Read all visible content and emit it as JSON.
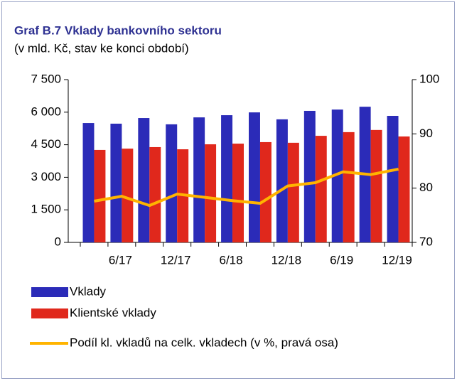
{
  "chart_data": {
    "type": "bar",
    "title": "Graf B.7 Vklady bankovního sektoru",
    "subtitle": "(v mld. Kč, stav ke konci období)",
    "categories": [
      null,
      "6/17",
      null,
      "12/17",
      null,
      "6/18",
      null,
      "12/18",
      null,
      "6/19",
      null,
      "12/19"
    ],
    "series": [
      {
        "name": "Vklady",
        "type": "bar",
        "color": "#2b2bb8",
        "values": [
          5500,
          5470,
          5730,
          5440,
          5760,
          5860,
          5990,
          5670,
          6060,
          6120,
          6250,
          5830
        ]
      },
      {
        "name": "Klientské vklady",
        "type": "bar",
        "color": "#e0281c",
        "values": [
          4260,
          4320,
          4390,
          4290,
          4520,
          4550,
          4620,
          4590,
          4910,
          5080,
          5180,
          4880
        ]
      },
      {
        "name": "Podíl kl. vkladů na celk. vkladech (v %, pravá osa)",
        "type": "line",
        "axis": "y2",
        "color": "#ffb400",
        "values": [
          77.6,
          78.5,
          76.8,
          78.9,
          78.3,
          77.7,
          77.2,
          80.4,
          81.0,
          83.0,
          82.5,
          83.5
        ]
      }
    ],
    "ylim": [
      0,
      7500
    ],
    "yticks": [
      0,
      {
        "value": 1500,
        "label": "1 500"
      },
      {
        "value": 3000,
        "label": "3 000"
      },
      {
        "value": 4500,
        "label": "4 500"
      },
      {
        "value": 6000,
        "label": "6 000"
      },
      {
        "value": 7500,
        "label": "7 500"
      }
    ],
    "y2lim": [
      70,
      100
    ],
    "y2ticks": [
      70,
      80,
      90,
      100
    ],
    "grid": false,
    "legend": "bottom"
  }
}
